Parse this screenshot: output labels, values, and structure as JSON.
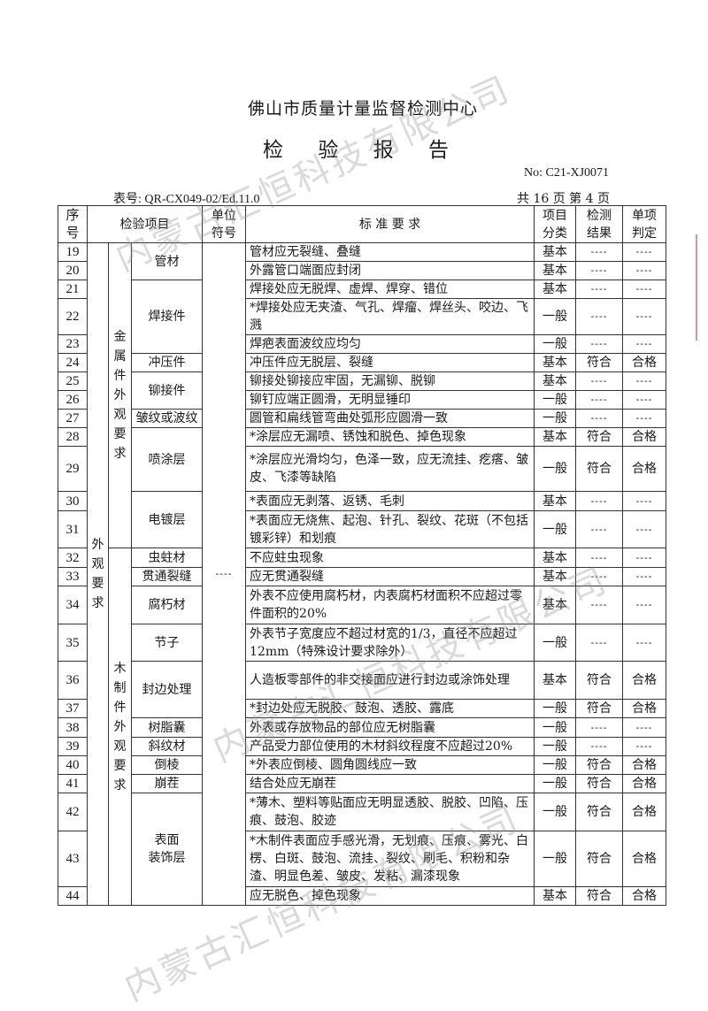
{
  "header": {
    "org": "佛山市质量计量监督检测中心",
    "title": "检 验 报 告",
    "report_no": "No: C21-XJ0071",
    "form_no": "表号: QR-CX049-02/Ed.11.0",
    "pages": "共 16 页   第 4 页"
  },
  "table": {
    "headers": {
      "seq": "序\n号",
      "item": "检验项目",
      "unit": "单位\n符号",
      "standard": "标 准 要 求",
      "class": "项目\n分类",
      "result": "检测\n结果",
      "judge": "单项\n判定"
    },
    "group": "外\n观\n要\n求",
    "unit_value": "----",
    "subgroups": [
      {
        "label": "金\n属\n件\n外\n观\n要\n求"
      },
      {
        "label": "木\n制\n件\n外\n观\n要\n求"
      }
    ],
    "items": [
      {
        "label": "管材"
      },
      {
        "label": "焊接件"
      },
      {
        "label": "冲压件"
      },
      {
        "label": "铆接件"
      },
      {
        "label": "皱纹或波纹"
      },
      {
        "label": "喷涂层"
      },
      {
        "label": "电镀层"
      },
      {
        "label": "虫蛀材"
      },
      {
        "label": "贯通裂缝"
      },
      {
        "label": "腐朽材"
      },
      {
        "label": "节子"
      },
      {
        "label": "封边处理"
      },
      {
        "label": "树脂囊"
      },
      {
        "label": "斜纹材"
      },
      {
        "label": "倒棱"
      },
      {
        "label": "崩茬"
      },
      {
        "label": "表面\n装饰层"
      }
    ],
    "rows": [
      {
        "seq": "19",
        "standard": "管材应无裂缝、叠缝",
        "class": "基本",
        "result": "----",
        "judge": "----"
      },
      {
        "seq": "20",
        "standard": "外露管口端面应封闭",
        "class": "基本",
        "result": "----",
        "judge": "----"
      },
      {
        "seq": "21",
        "standard": "焊接处应无脱焊、虚焊、焊穿、错位",
        "class": "基本",
        "result": "----",
        "judge": "----"
      },
      {
        "seq": "22",
        "standard": "*焊接处应无夹渣、气孔、焊瘤、焊丝头、咬边、飞溅",
        "class": "一般",
        "result": "----",
        "judge": "----"
      },
      {
        "seq": "23",
        "standard": "焊疤表面波纹应均匀",
        "class": "一般",
        "result": "----",
        "judge": "----"
      },
      {
        "seq": "24",
        "standard": "冲压件应无脱层、裂缝",
        "class": "基本",
        "result": "符合",
        "judge": "合格"
      },
      {
        "seq": "25",
        "standard": "铆接处铆接应牢固，无漏铆、脱铆",
        "class": "基本",
        "result": "----",
        "judge": "----"
      },
      {
        "seq": "26",
        "standard": "铆钉应端正圆滑，无明显锤印",
        "class": "一般",
        "result": "----",
        "judge": "----"
      },
      {
        "seq": "27",
        "standard": "圆管和扁线管弯曲处弧形应圆滑一致",
        "class": "一般",
        "result": "----",
        "judge": "----"
      },
      {
        "seq": "28",
        "standard": "*涂层应无漏喷、锈蚀和脱色、掉色现象",
        "class": "基本",
        "result": "符合",
        "judge": "合格"
      },
      {
        "seq": "29",
        "standard": "*涂层应光滑均匀，色泽一致，应无流挂、疙瘩、皱皮、飞漆等缺陷",
        "class": "一般",
        "result": "符合",
        "judge": "合格"
      },
      {
        "seq": "30",
        "standard": "*表面应无剥落、返锈、毛刺",
        "class": "基本",
        "result": "----",
        "judge": "----"
      },
      {
        "seq": "31",
        "standard": "*表面应无烧焦、起泡、针孔、裂纹、花斑（不包括镀彩锌）和划痕",
        "class": "一般",
        "result": "----",
        "judge": "----"
      },
      {
        "seq": "32",
        "standard": "不应蛀虫现象",
        "class": "基本",
        "result": "----",
        "judge": "----"
      },
      {
        "seq": "33",
        "standard": "应无贯通裂缝",
        "class": "基本",
        "result": "----",
        "judge": "----"
      },
      {
        "seq": "34",
        "standard": "外表不应使用腐朽材，内表腐朽材面积不应超过零件面积的20%",
        "class": "基本",
        "result": "----",
        "judge": "----"
      },
      {
        "seq": "35",
        "standard": "外表节子宽度应不超过材宽的1/3，直径不应超过12mm（特殊设计要求除外）",
        "class": "一般",
        "result": "----",
        "judge": "----"
      },
      {
        "seq": "36",
        "standard": "人造板零部件的非交接面应进行封边或涂饰处理",
        "class": "基本",
        "result": "符合",
        "judge": "合格"
      },
      {
        "seq": "37",
        "standard": "*封边处应无脱胶、鼓泡、透胶、露底",
        "class": "一般",
        "result": "符合",
        "judge": "合格"
      },
      {
        "seq": "38",
        "standard": "外表或存放物品的部位应无树脂囊",
        "class": "一般",
        "result": "----",
        "judge": "----"
      },
      {
        "seq": "39",
        "standard": "产品受力部位使用的木材斜纹程度不应超过20%",
        "class": "一般",
        "result": "----",
        "judge": "----"
      },
      {
        "seq": "40",
        "standard": "*外表应倒棱、圆角圆线应一致",
        "class": "一般",
        "result": "符合",
        "judge": "合格"
      },
      {
        "seq": "41",
        "standard": "结合处应无崩茬",
        "class": "一般",
        "result": "符合",
        "judge": "合格"
      },
      {
        "seq": "42",
        "standard": "*薄木、塑料等贴面应无明显透胶、脱胶、凹陷、压痕、鼓泡、胶迹",
        "class": "一般",
        "result": "符合",
        "judge": "合格"
      },
      {
        "seq": "43",
        "standard": "*木制件表面应手感光滑，无划痕、压痕、雾光、白楞、白斑、鼓泡、流挂、裂纹、刷毛、积粉和杂渣、明显色差、皱皮、发粘、漏漆现象",
        "class": "一般",
        "result": "符合",
        "judge": "合格"
      },
      {
        "seq": "44",
        "standard": "应无脱色、掉色现象",
        "class": "基本",
        "result": "符合",
        "judge": "合格"
      }
    ]
  },
  "watermark": "内蒙古汇恒科技有限公司"
}
